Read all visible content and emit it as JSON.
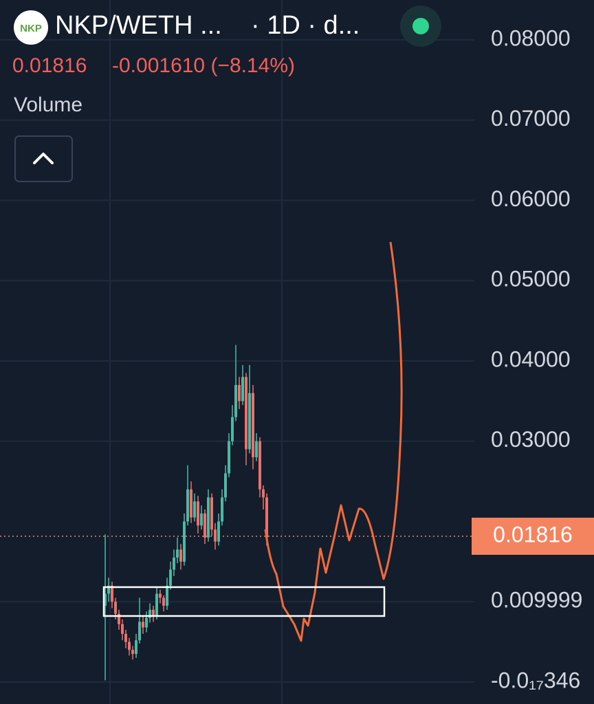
{
  "header": {
    "logo": "NKP",
    "symbol": "NKP/WETH ...",
    "interval": "· 1D · d...",
    "change": "-0.001610 (−8.14%)",
    "indicator": "Volume"
  },
  "chart_data": {
    "type": "candlestick",
    "open": [
      0.0095,
      0.011,
      0.012,
      0.01,
      0.0085,
      0.0072,
      0.006,
      0.005,
      0.004,
      0.0035,
      0.0052,
      0.0075,
      0.0068,
      0.008,
      0.009,
      0.0082,
      0.011,
      0.0105,
      0.0095,
      0.012,
      0.014,
      0.0155,
      0.0165,
      0.015,
      0.02,
      0.024,
      0.0205,
      0.0225,
      0.0195,
      0.021,
      0.018,
      0.023,
      0.019,
      0.0175,
      0.02,
      0.023,
      0.026,
      0.03,
      0.033,
      0.037,
      0.035,
      0.038,
      0.029,
      0.036,
      0.028,
      0.03,
      0.024,
      0.023
    ],
    "high": [
      0.0184,
      0.013,
      0.0125,
      0.0105,
      0.009,
      0.0078,
      0.0065,
      0.0055,
      0.0045,
      0.006,
      0.0105,
      0.0082,
      0.0088,
      0.0098,
      0.0095,
      0.0118,
      0.0115,
      0.0108,
      0.013,
      0.015,
      0.0165,
      0.018,
      0.0172,
      0.021,
      0.027,
      0.025,
      0.0235,
      0.0232,
      0.022,
      0.0215,
      0.024,
      0.0235,
      0.0198,
      0.021,
      0.024,
      0.027,
      0.031,
      0.0345,
      0.042,
      0.038,
      0.0395,
      0.0385,
      0.0395,
      0.037,
      0.031,
      0.0305,
      0.0245,
      0.0235
    ],
    "low": [
      0.0002,
      0.01,
      0.0092,
      0.0078,
      0.0065,
      0.0052,
      0.0042,
      0.0033,
      0.0028,
      0.003,
      0.0048,
      0.006,
      0.0062,
      0.0074,
      0.0075,
      0.0078,
      0.0098,
      0.0088,
      0.009,
      0.0115,
      0.0132,
      0.0148,
      0.014,
      0.0145,
      0.0195,
      0.0198,
      0.02,
      0.0185,
      0.019,
      0.0172,
      0.0175,
      0.0182,
      0.0165,
      0.017,
      0.0195,
      0.0225,
      0.0255,
      0.0295,
      0.0325,
      0.034,
      0.0345,
      0.027,
      0.0285,
      0.0265,
      0.0275,
      0.023,
      0.0215,
      0.017
    ],
    "close": [
      0.011,
      0.012,
      0.01,
      0.0085,
      0.0072,
      0.006,
      0.005,
      0.004,
      0.0035,
      0.0052,
      0.0075,
      0.0068,
      0.008,
      0.009,
      0.0082,
      0.011,
      0.0105,
      0.0095,
      0.012,
      0.014,
      0.0155,
      0.0165,
      0.015,
      0.02,
      0.024,
      0.0205,
      0.0225,
      0.0195,
      0.021,
      0.018,
      0.023,
      0.019,
      0.0175,
      0.02,
      0.023,
      0.026,
      0.03,
      0.033,
      0.037,
      0.035,
      0.038,
      0.029,
      0.036,
      0.028,
      0.03,
      0.024,
      0.023,
      0.018
    ],
    "up_color": "#4fb8a4",
    "down_color": "#e8726c",
    "last_price": 0.01816,
    "last_price_color": "#f4845f",
    "ylim": [
      -0.00274,
      0.08497
    ],
    "yticks": [
      {
        "value": 0.08,
        "label": "0.08000"
      },
      {
        "value": 0.07,
        "label": "0.07000"
      },
      {
        "value": 0.06,
        "label": "0.06000"
      },
      {
        "value": 0.05,
        "label": "0.05000"
      },
      {
        "value": 0.04,
        "label": "0.04000"
      },
      {
        "value": 0.03,
        "label": "0.03000"
      },
      0.009999,
      {
        "value": -3.46e-17,
        "label": "-0.0₁₇346"
      }
    ],
    "grid": true
  }
}
